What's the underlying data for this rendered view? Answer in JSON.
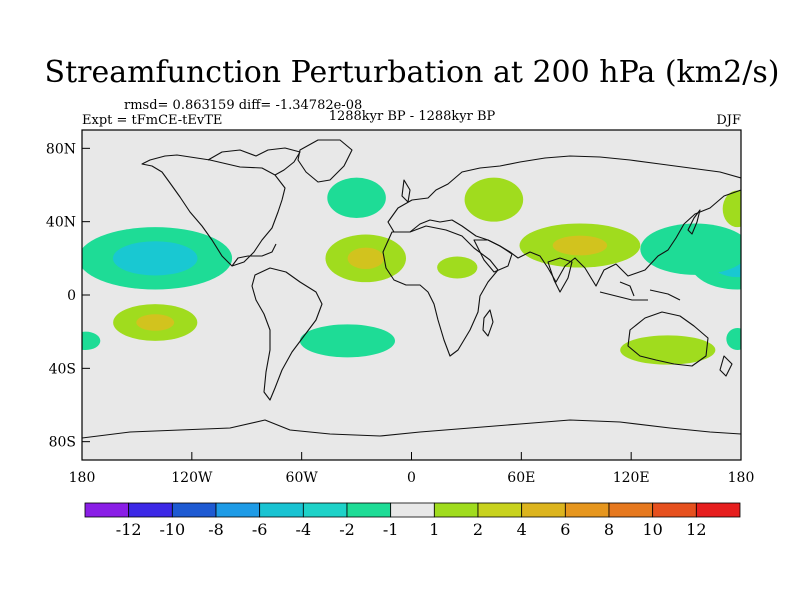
{
  "chart_data": {
    "type": "heatmap",
    "title": "Streamfunction Perturbation at 200 hPa (km2/s)",
    "stats_text": "rmsd= 0.863159 diff= -1.34782e-08",
    "left_label": "Expt = tFmCE-tEvTE",
    "center_label": "1288kyr BP - 1288kyr BP",
    "right_label": "DJF",
    "xlim": [
      -180,
      180
    ],
    "ylim": [
      -90,
      90
    ],
    "x_ticks": [
      {
        "value": -180,
        "label": "180"
      },
      {
        "value": -120,
        "label": "120W"
      },
      {
        "value": -60,
        "label": "60W"
      },
      {
        "value": 0,
        "label": "0"
      },
      {
        "value": 60,
        "label": "60E"
      },
      {
        "value": 120,
        "label": "120E"
      },
      {
        "value": 180,
        "label": "180"
      }
    ],
    "y_ticks": [
      {
        "value": 80,
        "label": "80N"
      },
      {
        "value": 40,
        "label": "40N"
      },
      {
        "value": 0,
        "label": "0"
      },
      {
        "value": -40,
        "label": "40S"
      },
      {
        "value": -80,
        "label": "80S"
      }
    ],
    "colorbar": {
      "colors": [
        "#8a1ee6",
        "#3c28e6",
        "#1e5ad2",
        "#1e9be6",
        "#19c3d2",
        "#1ed2c8",
        "#1edc96",
        "#e8e8e8",
        "#a0dc1e",
        "#c8d21e",
        "#dcb41e",
        "#e6961e",
        "#e6781e",
        "#e6501e",
        "#e61e1e"
      ],
      "labels": [
        "-12",
        "-10",
        "-8",
        "-6",
        "-4",
        "-2",
        "-1",
        "1",
        "2",
        "4",
        "6",
        "8",
        "10",
        "12"
      ]
    },
    "anomalies": [
      {
        "name": "central-pacific-negative",
        "lon": -140,
        "lat": 20,
        "rx": 42,
        "ry": 17,
        "levels": [
          -1,
          -2
        ]
      },
      {
        "name": "east-pacific-negative",
        "lon": 178,
        "lat": 18,
        "rx": 26,
        "ry": 15,
        "levels": [
          -1,
          -2
        ]
      },
      {
        "name": "east-pacific-positive",
        "lon": 178,
        "lat": 47,
        "rx": 8,
        "ry": 10,
        "levels": [
          1
        ]
      },
      {
        "name": "north-atlantic-negative",
        "lon": -30,
        "lat": 53,
        "rx": 16,
        "ry": 11,
        "levels": [
          -1
        ]
      },
      {
        "name": "west-asia-positive",
        "lon": 45,
        "lat": 52,
        "rx": 16,
        "ry": 12,
        "levels": [
          1
        ]
      },
      {
        "name": "tropical-atlantic-positive",
        "lon": -25,
        "lat": 20,
        "rx": 22,
        "ry": 13,
        "levels": [
          1,
          2
        ]
      },
      {
        "name": "africa-positive",
        "lon": 25,
        "lat": 15,
        "rx": 11,
        "ry": 6,
        "levels": [
          1
        ]
      },
      {
        "name": "south-asia-positive",
        "lon": 92,
        "lat": 27,
        "rx": 33,
        "ry": 12,
        "levels": [
          1,
          2
        ]
      },
      {
        "name": "west-pacific-negative",
        "lon": 155,
        "lat": 25,
        "rx": 30,
        "ry": 14,
        "levels": [
          -1
        ]
      },
      {
        "name": "south-pacific-positive",
        "lon": -140,
        "lat": -15,
        "rx": 23,
        "ry": 10,
        "levels": [
          1,
          2
        ]
      },
      {
        "name": "south-pacific-negative",
        "lon": -178,
        "lat": -25,
        "rx": 8,
        "ry": 5,
        "levels": [
          -1
        ]
      },
      {
        "name": "south-atlantic-negative",
        "lon": -35,
        "lat": -25,
        "rx": 26,
        "ry": 9,
        "levels": [
          -1
        ]
      },
      {
        "name": "australia-positive",
        "lon": 140,
        "lat": -30,
        "rx": 26,
        "ry": 8,
        "levels": [
          1
        ]
      },
      {
        "name": "southwest-pacific-negative",
        "lon": 178,
        "lat": -24,
        "rx": 6,
        "ry": 6,
        "levels": [
          -1
        ]
      }
    ]
  }
}
